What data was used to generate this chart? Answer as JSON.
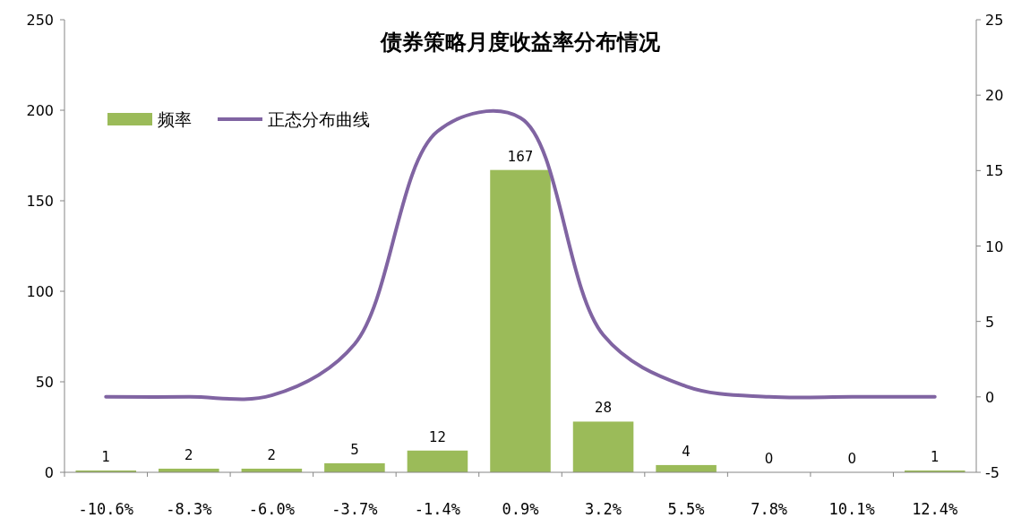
{
  "chart_data": {
    "type": "bar",
    "title": "债券策略月度收益率分布情况",
    "categories": [
      "-10.6%",
      "-8.3%",
      "-6.0%",
      "-3.7%",
      "-1.4%",
      "0.9%",
      "3.2%",
      "5.5%",
      "7.8%",
      "10.1%",
      "12.4%"
    ],
    "series": [
      {
        "name": "频率",
        "color": "#9bbb59",
        "values": [
          1,
          2,
          2,
          5,
          12,
          167,
          28,
          4,
          0,
          0,
          1
        ],
        "value_labels": [
          "1",
          "2",
          "2",
          "5",
          "12",
          "167",
          "28",
          "4",
          "0",
          "0",
          "1"
        ]
      },
      {
        "name": "正态分布曲线",
        "type": "line",
        "axis": "y2",
        "color": "#8064a2",
        "values": [
          0,
          0,
          0.1,
          3.5,
          17.6,
          18.5,
          4.1,
          0.7,
          0,
          0,
          0
        ]
      }
    ],
    "ylim": [
      0,
      250
    ],
    "yticks": [
      0,
      50,
      100,
      150,
      200,
      250
    ],
    "y2lim": [
      -5,
      25
    ],
    "y2ticks": [
      -5,
      0,
      5,
      10,
      15,
      20,
      25
    ],
    "grid": false,
    "legend": "top left",
    "marker": "none"
  }
}
